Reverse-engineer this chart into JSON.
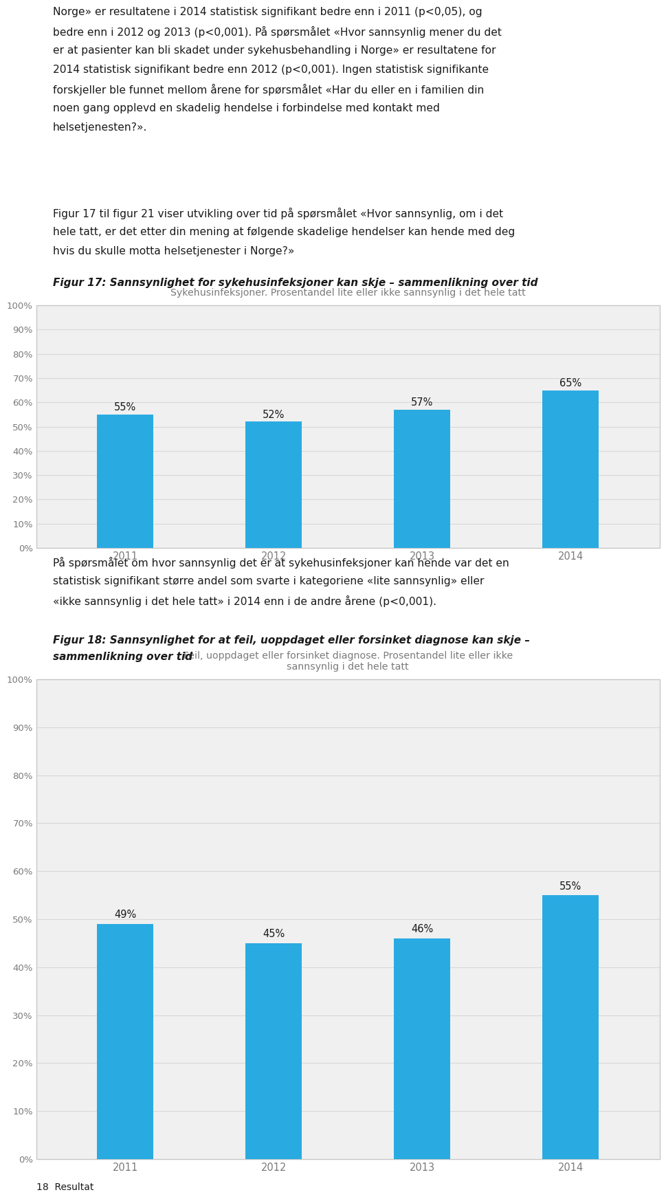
{
  "page_bg": "#ffffff",
  "text_color": "#1a1a1a",
  "gray_text": "#7a7a7a",
  "bar_color": "#29abe2",
  "chart_bg": "#f0f0f0",
  "grid_color": "#d8d8d8",
  "paragraph1_lines": [
    "Norge» er resultatene i 2014 statistisk signifikant bedre enn i 2011 (p<0,05), og",
    "bedre enn i 2012 og 2013 (p<0,001). På spørsmålet «Hvor sannsynlig mener du det",
    "er at pasienter kan bli skadet under sykehusbehandling i Norge» er resultatene for",
    "2014 statistisk signifikant bedre enn 2012 (p<0,001). Ingen statistisk signifikante",
    "forskjeller ble funnet mellom årene for spørsmålet «Har du eller en i familien din",
    "noen gang opplevd en skadelig hendelse i forbindelse med kontakt med",
    "helsetjenesten?»."
  ],
  "paragraph2_lines": [
    "Figur 17 til figur 21 viser utvikling over tid på spørsmålet «Hvor sannsynlig, om i det",
    "hele tatt, er det etter din mening at følgende skadelige hendelser kan hende med deg",
    "hvis du skulle motta helsetjenester i Norge?»"
  ],
  "fig17_caption": "Figur 17: Sannsynlighet for sykehusinfeksjoner kan skje – sammenlikning over tid",
  "chart1_title": "Sykehusinfeksjoner. Prosentandel lite eller ikke sannsynlig i det hele tatt",
  "chart1_years": [
    "2011",
    "2012",
    "2013",
    "2014"
  ],
  "chart1_values": [
    55,
    52,
    57,
    65
  ],
  "chart1_labels": [
    "55%",
    "52%",
    "57%",
    "65%"
  ],
  "paragraph3_lines": [
    "På spørsmålet om hvor sannsynlig det er at sykehusinfeksjoner kan hende var det en",
    "statistisk signifikant større andel som svarte i kategoriene «lite sannsynlig» eller",
    "«ikke sannsynlig i det hele tatt» i 2014 enn i de andre årene (p<0,001)."
  ],
  "fig18_caption_lines": [
    "Figur 18: Sannsynlighet for at feil, uoppdaget eller forsinket diagnose kan skje –",
    "sammenlikning over tid"
  ],
  "chart2_title_line1": "Feil, uoppdaget eller forsinket diagnose. Prosentandel lite eller ikke",
  "chart2_title_line2": "sannsynlig i det hele tatt",
  "chart2_years": [
    "2011",
    "2012",
    "2013",
    "2014"
  ],
  "chart2_values": [
    49,
    45,
    46,
    55
  ],
  "chart2_labels": [
    "49%",
    "45%",
    "46%",
    "55%"
  ],
  "footer_text": "18  Resultat",
  "yticks": [
    0,
    10,
    20,
    30,
    40,
    50,
    60,
    70,
    80,
    90,
    100
  ],
  "ytick_labels": [
    "0%",
    "10%",
    "20%",
    "30%",
    "40%",
    "50%",
    "60%",
    "70%",
    "80%",
    "90%",
    "100%"
  ]
}
